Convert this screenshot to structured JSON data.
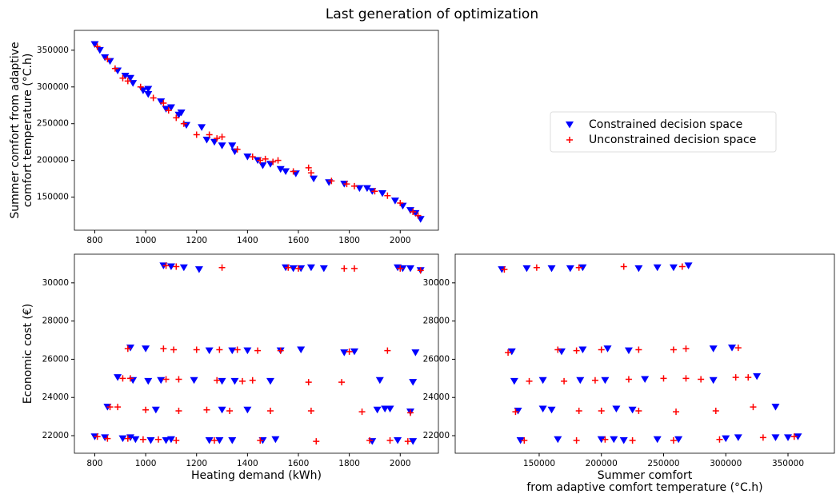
{
  "title": "Last generation of optimization",
  "chart_data": [
    {
      "type": "scatter",
      "ylabel": [
        "Summer comfort from adaptive",
        "comfort temperature (°C.h)"
      ],
      "xlim": [
        720,
        2150
      ],
      "ylim": [
        105000,
        377000
      ],
      "xticks": [
        800,
        1000,
        1200,
        1400,
        1600,
        1800,
        2000
      ],
      "yticks": [
        150000,
        200000,
        250000,
        300000,
        350000
      ],
      "legend": "outside right",
      "series": [
        {
          "name": "Constrained decision space",
          "color": "#0000ff",
          "marker": "v",
          "x": [
            800,
            820,
            840,
            860,
            890,
            920,
            940,
            950,
            990,
            1010,
            1010,
            1060,
            1080,
            1100,
            1130,
            1140,
            1160,
            1220,
            1240,
            1270,
            1300,
            1340,
            1350,
            1400,
            1440,
            1460,
            1490,
            1530,
            1550,
            1590,
            1660,
            1720,
            1780,
            1840,
            1870,
            1890,
            1930,
            1980,
            2010,
            2040,
            2060,
            2080
          ],
          "values": [
            358000,
            350000,
            340000,
            335000,
            322000,
            315000,
            312000,
            305000,
            295000,
            297000,
            290000,
            280000,
            270000,
            272000,
            262000,
            265000,
            248000,
            245000,
            228000,
            225000,
            220000,
            220000,
            212000,
            205000,
            200000,
            193000,
            195000,
            188000,
            185000,
            182000,
            175000,
            170000,
            168000,
            162000,
            162000,
            158000,
            155000,
            145000,
            138000,
            132000,
            128000,
            120000
          ]
        },
        {
          "name": "Unconstrained decision space",
          "color": "#ff0000",
          "marker": "+",
          "x": [
            810,
            850,
            880,
            910,
            930,
            980,
            1030,
            1070,
            1090,
            1120,
            1150,
            1200,
            1250,
            1280,
            1300,
            1360,
            1420,
            1450,
            1470,
            1500,
            1520,
            1580,
            1640,
            1650,
            1730,
            1790,
            1820,
            1900,
            1950,
            2000,
            2050,
            2070
          ],
          "values": [
            355000,
            338000,
            325000,
            312000,
            308000,
            300000,
            285000,
            278000,
            268000,
            258000,
            250000,
            235000,
            235000,
            230000,
            232000,
            215000,
            205000,
            200000,
            202000,
            198000,
            200000,
            185000,
            190000,
            183000,
            172000,
            168000,
            165000,
            158000,
            152000,
            142000,
            130000,
            125000
          ]
        }
      ]
    },
    {
      "type": "scatter",
      "xlabel": [
        "Heating demand (kWh)"
      ],
      "ylabel": [
        "Economic cost (€)"
      ],
      "xlim": [
        720,
        2150
      ],
      "ylim": [
        21080,
        31500
      ],
      "xticks": [
        800,
        1000,
        1200,
        1400,
        1600,
        1800,
        2000
      ],
      "yticks": [
        22000,
        24000,
        26000,
        28000,
        30000
      ],
      "series": [
        {
          "color": "#0000ff",
          "marker": "v",
          "x": [
            1070,
            1100,
            1150,
            1210,
            1550,
            1580,
            1610,
            1650,
            1700,
            1990,
            2010,
            2040,
            2080,
            940,
            1000,
            1250,
            1340,
            1400,
            1530,
            1610,
            1780,
            1820,
            2060,
            890,
            950,
            1010,
            1060,
            1190,
            1300,
            1350,
            1490,
            1920,
            2050,
            850,
            1040,
            1300,
            1400,
            1910,
            1940,
            1960,
            2040,
            800,
            840,
            910,
            940,
            960,
            1020,
            1080,
            1100,
            1250,
            1290,
            1340,
            1460,
            1510,
            1890,
            1990,
            2050
          ],
          "values": [
            30900,
            30850,
            30800,
            30700,
            30800,
            30750,
            30750,
            30800,
            30750,
            30800,
            30750,
            30750,
            30650,
            26600,
            26550,
            26450,
            26450,
            26450,
            26450,
            26500,
            26350,
            26400,
            26350,
            25050,
            24900,
            24850,
            24900,
            24900,
            24850,
            24850,
            24850,
            24900,
            24800,
            23500,
            23350,
            23350,
            23350,
            23350,
            23400,
            23400,
            23250,
            21950,
            21900,
            21850,
            21900,
            21800,
            21750,
            21750,
            21800,
            21750,
            21750,
            21750,
            21750,
            21800,
            21700,
            21750,
            21700
          ]
        },
        {
          "color": "#ff0000",
          "marker": "+",
          "x": [
            1080,
            1120,
            1300,
            1560,
            1600,
            1780,
            1820,
            2000,
            2080,
            930,
            1070,
            1110,
            1200,
            1290,
            1360,
            1440,
            1530,
            1800,
            1950,
            910,
            940,
            1080,
            1130,
            1280,
            1380,
            1420,
            1640,
            1770,
            860,
            890,
            1000,
            1130,
            1240,
            1330,
            1490,
            1650,
            1850,
            2040,
            810,
            850,
            930,
            990,
            1050,
            1120,
            1270,
            1450,
            1670,
            1880,
            1960,
            2030
          ],
          "values": [
            30900,
            30850,
            30800,
            30800,
            30750,
            30750,
            30750,
            30750,
            30650,
            26550,
            26550,
            26500,
            26500,
            26500,
            26500,
            26450,
            26450,
            26400,
            26450,
            25000,
            25000,
            24950,
            24950,
            24900,
            24850,
            24900,
            24800,
            24800,
            23500,
            23500,
            23350,
            23300,
            23350,
            23300,
            23300,
            23300,
            23250,
            23200,
            21950,
            21850,
            21850,
            21800,
            21800,
            21750,
            21750,
            21750,
            21700,
            21750,
            21750,
            21700
          ]
        }
      ]
    },
    {
      "type": "scatter",
      "xlabel": [
        "Summer comfort",
        "from adaptive comfort temperature (°C.h)"
      ],
      "xlim": [
        82500,
        387300
      ],
      "ylim": [
        21080,
        31500
      ],
      "xticks": [
        150000,
        200000,
        250000,
        300000,
        350000
      ],
      "yticks": [
        22000,
        24000,
        26000,
        28000,
        30000
      ],
      "series": [
        {
          "color": "#0000ff",
          "marker": "v",
          "x": [
            120000,
            140000,
            160000,
            175000,
            185000,
            230000,
            245000,
            258000,
            270000,
            128000,
            168000,
            185000,
            205000,
            222000,
            290000,
            305000,
            130000,
            153000,
            183000,
            203000,
            235000,
            290000,
            325000,
            133000,
            153000,
            160000,
            212000,
            225000,
            340000,
            135000,
            165000,
            200000,
            210000,
            218000,
            245000,
            262000,
            300000,
            310000,
            340000,
            350000,
            358000
          ],
          "values": [
            30700,
            30750,
            30750,
            30750,
            30800,
            30750,
            30800,
            30800,
            30900,
            26400,
            26400,
            26500,
            26550,
            26450,
            26550,
            26600,
            24850,
            24900,
            24900,
            24900,
            24950,
            24900,
            25100,
            23300,
            23400,
            23350,
            23400,
            23350,
            23500,
            21750,
            21800,
            21800,
            21800,
            21750,
            21800,
            21800,
            21850,
            21900,
            21900,
            21900,
            21950
          ]
        },
        {
          "color": "#ff0000",
          "marker": "+",
          "x": [
            122000,
            148000,
            182000,
            218000,
            265000,
            125000,
            165000,
            180000,
            200000,
            230000,
            258000,
            268000,
            310000,
            142000,
            170000,
            195000,
            222000,
            250000,
            268000,
            280000,
            308000,
            318000,
            131000,
            182000,
            200000,
            230000,
            260000,
            292000,
            322000,
            138000,
            180000,
            203000,
            225000,
            258000,
            295000,
            330000,
            355000
          ],
          "values": [
            30700,
            30800,
            30800,
            30850,
            30850,
            26350,
            26500,
            26450,
            26500,
            26500,
            26500,
            26550,
            26600,
            24850,
            24850,
            24900,
            24950,
            25000,
            25000,
            24950,
            25050,
            25050,
            23250,
            23300,
            23300,
            23300,
            23250,
            23300,
            23500,
            21750,
            21750,
            21800,
            21750,
            21750,
            21800,
            21900,
            21950
          ]
        }
      ]
    }
  ]
}
